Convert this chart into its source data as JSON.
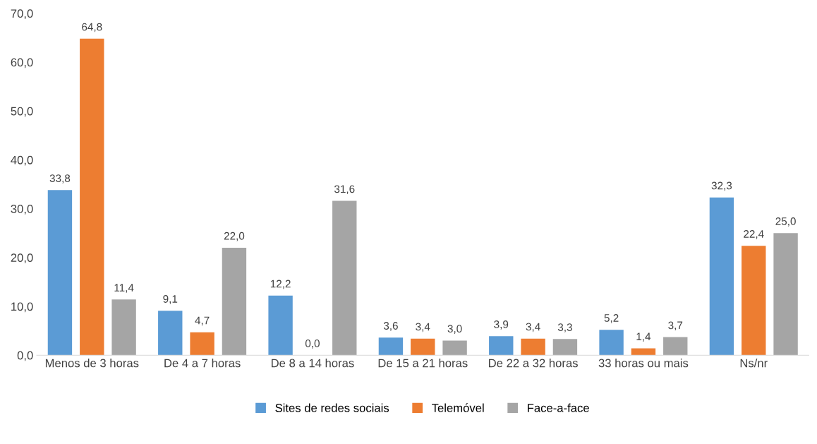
{
  "chart_data": {
    "type": "bar",
    "categories": [
      "Menos de 3 horas",
      "De 4 a 7 horas",
      "De 8 a 14 horas",
      "De 15 a 21 horas",
      "De 22 a 32 horas",
      "33 horas ou mais",
      "Ns/nr"
    ],
    "series": [
      {
        "name": "Sites de redes sociais",
        "color": "#5b9bd5",
        "values": [
          33.8,
          9.1,
          12.2,
          3.6,
          3.9,
          5.2,
          32.3
        ],
        "value_labels": [
          "33,8",
          "9,1",
          "12,2",
          "3,6",
          "3,9",
          "5,2",
          "32,3"
        ]
      },
      {
        "name": "Telemóvel",
        "color": "#ed7d31",
        "values": [
          64.8,
          4.7,
          0.0,
          3.4,
          3.4,
          1.4,
          22.4
        ],
        "value_labels": [
          "64,8",
          "4,7",
          "0,0",
          "3,4",
          "3,4",
          "1,4",
          "22,4"
        ]
      },
      {
        "name": "Face-a-face",
        "color": "#a5a5a5",
        "values": [
          11.4,
          22.0,
          31.6,
          3.0,
          3.3,
          3.7,
          25.0
        ],
        "value_labels": [
          "11,4",
          "22,0",
          "31,6",
          "3,0",
          "3,3",
          "3,7",
          "25,0"
        ]
      }
    ],
    "ylim": [
      0,
      70
    ],
    "yticks": [
      {
        "value": 0,
        "label": "0,0"
      },
      {
        "value": 10,
        "label": "10,0"
      },
      {
        "value": 20,
        "label": "20,0"
      },
      {
        "value": 30,
        "label": "30,0"
      },
      {
        "value": 40,
        "label": "40,0"
      },
      {
        "value": 50,
        "label": "50,0"
      },
      {
        "value": 60,
        "label": "60,0"
      },
      {
        "value": 70,
        "label": "70,0"
      }
    ],
    "grid": false,
    "legend": "bottom"
  }
}
